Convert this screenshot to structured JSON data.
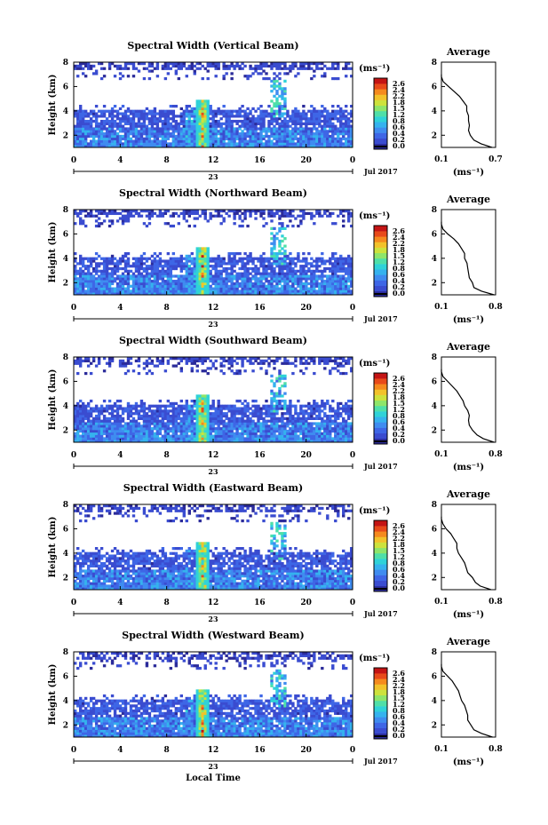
{
  "footer": {
    "xlabel": "Local Time"
  },
  "colorbar_unit": "(ms⁻¹)",
  "colorbar_ticks": [
    "2.6",
    "2.4",
    "2.2",
    "1.8",
    "1.5",
    "1.2",
    "0.8",
    "0.6",
    "0.4",
    "0.2",
    "0.0"
  ],
  "colormap": [
    "#2b2b9a",
    "#3a4cd0",
    "#3e66e6",
    "#3f8cf0",
    "#35b2ee",
    "#2fd2d8",
    "#4fdfa8",
    "#8ee56a",
    "#cde23c",
    "#f2c22a",
    "#f58a1e",
    "#e84a1a",
    "#c41414"
  ],
  "chart_data": [
    {
      "type": "heatmap",
      "title": "Spectral Width (Vertical Beam)",
      "ylabel": "Height (km)",
      "xlim": [
        0,
        24
      ],
      "ylim": [
        1,
        8
      ],
      "xticks": [
        "0",
        "4",
        "8",
        "12",
        "16",
        "20",
        "0"
      ],
      "yticks": [
        "2",
        "4",
        "6",
        "8"
      ],
      "day_label": "23",
      "date_label": "Jul 2017",
      "zlim": [
        0,
        2.6
      ],
      "profile": {
        "title": "Average",
        "xlabel": "(ms⁻¹)",
        "xlim": [
          0.1,
          0.7
        ],
        "xticks": [
          "0.1",
          "0.7"
        ],
        "yticks": [
          "2",
          "4",
          "6",
          "8"
        ],
        "height": [
          1.0,
          1.3,
          1.6,
          2.0,
          2.4,
          2.8,
          3.2,
          3.6,
          4.0,
          4.4,
          4.8,
          5.2,
          5.6,
          6.0,
          6.4,
          6.8,
          7.0
        ],
        "width": [
          0.66,
          0.54,
          0.46,
          0.42,
          0.4,
          0.41,
          0.4,
          0.4,
          0.38,
          0.38,
          0.34,
          0.3,
          0.24,
          0.18,
          0.12,
          0.1,
          0.1
        ]
      }
    },
    {
      "type": "heatmap",
      "title": "Spectral Width (Northward Beam)",
      "ylabel": "Height (km)",
      "xlim": [
        0,
        24
      ],
      "ylim": [
        1,
        8
      ],
      "xticks": [
        "0",
        "4",
        "8",
        "12",
        "16",
        "20",
        "0"
      ],
      "yticks": [
        "2",
        "4",
        "6",
        "8"
      ],
      "day_label": "23",
      "date_label": "Jul 2017",
      "zlim": [
        0,
        2.6
      ],
      "profile": {
        "title": "Average",
        "xlabel": "(ms⁻¹)",
        "xlim": [
          0.1,
          0.8
        ],
        "xticks": [
          "0.1",
          "0.8"
        ],
        "yticks": [
          "2",
          "4",
          "6",
          "8"
        ],
        "height": [
          1.0,
          1.3,
          1.6,
          2.0,
          2.4,
          2.8,
          3.2,
          3.6,
          4.0,
          4.4,
          4.8,
          5.2,
          5.6,
          6.0,
          6.4,
          6.8,
          7.0
        ],
        "width": [
          0.78,
          0.62,
          0.52,
          0.5,
          0.46,
          0.45,
          0.44,
          0.43,
          0.4,
          0.4,
          0.36,
          0.32,
          0.26,
          0.18,
          0.12,
          0.1,
          0.1
        ]
      }
    },
    {
      "type": "heatmap",
      "title": "Spectral Width (Southward Beam)",
      "ylabel": "Height (km)",
      "xlim": [
        0,
        24
      ],
      "ylim": [
        1,
        8
      ],
      "xticks": [
        "0",
        "4",
        "8",
        "12",
        "16",
        "20",
        "0"
      ],
      "yticks": [
        "2",
        "4",
        "6",
        "8"
      ],
      "day_label": "23",
      "date_label": "Jul 2017",
      "zlim": [
        0,
        2.6
      ],
      "profile": {
        "title": "Average",
        "xlabel": "(ms⁻¹)",
        "xlim": [
          0.1,
          0.8
        ],
        "xticks": [
          "0.1",
          "0.8"
        ],
        "yticks": [
          "2",
          "4",
          "6",
          "8"
        ],
        "height": [
          1.0,
          1.3,
          1.6,
          2.0,
          2.4,
          2.8,
          3.2,
          3.6,
          4.0,
          4.4,
          4.8,
          5.2,
          5.6,
          6.0,
          6.4,
          6.8,
          7.0
        ],
        "width": [
          0.78,
          0.64,
          0.56,
          0.5,
          0.46,
          0.45,
          0.46,
          0.44,
          0.4,
          0.38,
          0.34,
          0.3,
          0.24,
          0.18,
          0.12,
          0.1,
          0.1
        ]
      }
    },
    {
      "type": "heatmap",
      "title": "Spectral Width (Eastward Beam)",
      "ylabel": "Height (km)",
      "xlim": [
        0,
        24
      ],
      "ylim": [
        1,
        8
      ],
      "xticks": [
        "0",
        "4",
        "8",
        "12",
        "16",
        "20",
        "0"
      ],
      "yticks": [
        "2",
        "4",
        "6",
        "8"
      ],
      "day_label": "23",
      "date_label": "Jul 2017",
      "zlim": [
        0,
        2.6
      ],
      "profile": {
        "title": "Average",
        "xlabel": "(ms⁻¹)",
        "xlim": [
          0.1,
          0.8
        ],
        "xticks": [
          "0.1",
          "0.8"
        ],
        "yticks": [
          "2",
          "4",
          "6",
          "8"
        ],
        "height": [
          1.0,
          1.3,
          1.6,
          2.0,
          2.4,
          2.8,
          3.2,
          3.6,
          4.0,
          4.4,
          4.8,
          5.2,
          5.6,
          6.0,
          6.4,
          6.8,
          7.0
        ],
        "width": [
          0.74,
          0.6,
          0.54,
          0.5,
          0.44,
          0.42,
          0.4,
          0.36,
          0.32,
          0.3,
          0.3,
          0.26,
          0.22,
          0.16,
          0.12,
          0.1,
          0.1
        ]
      }
    },
    {
      "type": "heatmap",
      "title": "Spectral Width (Westward Beam)",
      "ylabel": "Height (km)",
      "xlim": [
        0,
        24
      ],
      "ylim": [
        1,
        8
      ],
      "xticks": [
        "0",
        "4",
        "8",
        "12",
        "16",
        "20",
        "0"
      ],
      "yticks": [
        "2",
        "4",
        "6",
        "8"
      ],
      "day_label": "23",
      "date_label": "Jul 2017",
      "zlim": [
        0,
        2.6
      ],
      "profile": {
        "title": "Average",
        "xlabel": "(ms⁻¹)",
        "xlim": [
          0.1,
          0.8
        ],
        "xticks": [
          "0.1",
          "0.8"
        ],
        "yticks": [
          "2",
          "4",
          "6",
          "8"
        ],
        "height": [
          1.0,
          1.3,
          1.6,
          2.0,
          2.4,
          2.8,
          3.2,
          3.6,
          4.0,
          4.4,
          4.8,
          5.2,
          5.6,
          6.0,
          6.4,
          6.8,
          7.0
        ],
        "width": [
          0.76,
          0.62,
          0.52,
          0.48,
          0.44,
          0.44,
          0.42,
          0.4,
          0.36,
          0.34,
          0.32,
          0.28,
          0.24,
          0.18,
          0.12,
          0.1,
          0.1
        ]
      }
    }
  ]
}
